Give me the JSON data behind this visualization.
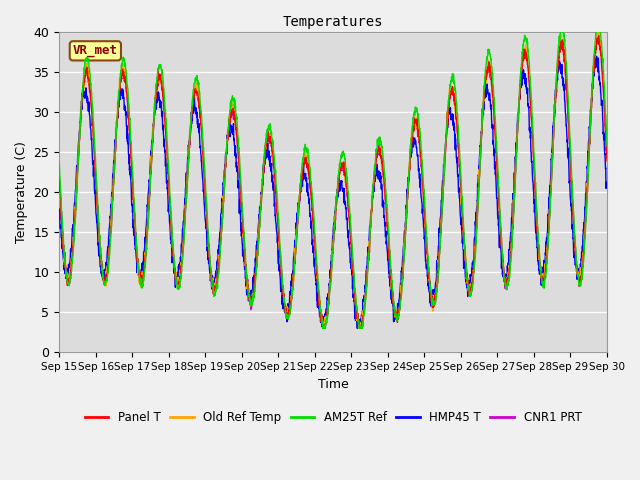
{
  "title": "Temperatures",
  "xlabel": "Time",
  "ylabel": "Temperature (C)",
  "ylim": [
    0,
    40
  ],
  "xlim": [
    0,
    15
  ],
  "background_color": "#dcdcdc",
  "fig_facecolor": "#f0f0f0",
  "xtick_labels": [
    "Sep 15",
    "Sep 16",
    "Sep 17",
    "Sep 18",
    "Sep 19",
    "Sep 20",
    "Sep 21",
    "Sep 22",
    "Sep 23",
    "Sep 24",
    "Sep 25",
    "Sep 26",
    "Sep 27",
    "Sep 28",
    "Sep 29",
    "Sep 30"
  ],
  "ytick_values": [
    0,
    5,
    10,
    15,
    20,
    25,
    30,
    35,
    40
  ],
  "series": {
    "Panel T": {
      "color": "#ff0000",
      "zorder": 5
    },
    "Old Ref Temp": {
      "color": "#ffa500",
      "zorder": 4
    },
    "AM25T Ref": {
      "color": "#00dd00",
      "zorder": 6
    },
    "HMP45 T": {
      "color": "#0000ff",
      "zorder": 3
    },
    "CNR1 PRT": {
      "color": "#cc00cc",
      "zorder": 2
    }
  },
  "annotation_text": "VR_met",
  "lw": 1.0
}
